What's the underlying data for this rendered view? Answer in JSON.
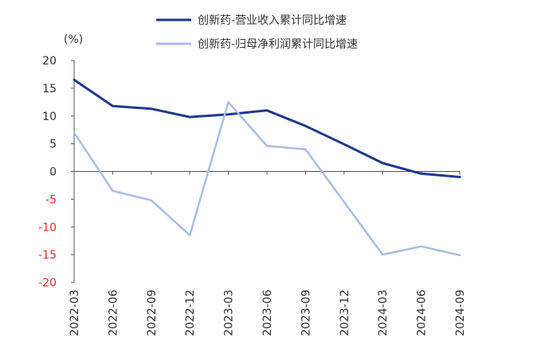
{
  "chart_data": {
    "type": "line",
    "unit_label": "(%)",
    "categories": [
      "2022-03",
      "2022-06",
      "2022-09",
      "2022-12",
      "2023-03",
      "2023-06",
      "2023-09",
      "2023-12",
      "2024-03",
      "2024-06",
      "2024-09"
    ],
    "series": [
      {
        "name": "创新药-营业收入累计同比增速",
        "color": "#1f3a8a",
        "values": [
          16.5,
          11.8,
          11.3,
          9.8,
          10.3,
          11.0,
          8.2,
          4.9,
          1.5,
          -0.4,
          -1.0
        ]
      },
      {
        "name": "创新药-归母净利润累计同比增速",
        "color": "#a8bde3",
        "values": [
          7.0,
          -3.5,
          -5.2,
          -11.5,
          12.5,
          4.6,
          4.0,
          -5.5,
          -15.0,
          -13.5,
          -15.1
        ]
      }
    ],
    "ylim": [
      -20,
      20
    ],
    "yticks": [
      20,
      15,
      10,
      5,
      0,
      -5,
      -10,
      -15,
      -20
    ],
    "grid": false,
    "legend_position": "top"
  }
}
